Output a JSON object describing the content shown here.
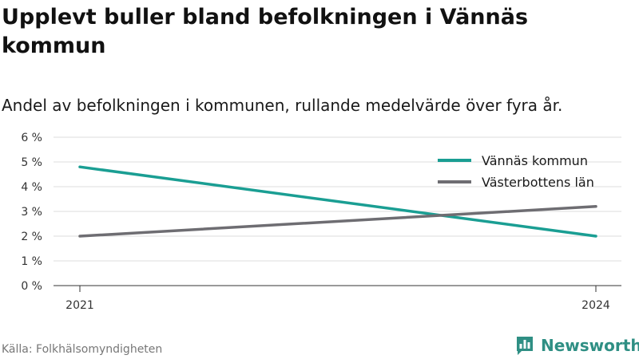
{
  "title": "Upplevt buller bland befolkningen i Vännäs kommun",
  "subtitle": "Andel av befolkningen i kommunen, rullande medelvärde över fyra år.",
  "source": "Källa: Folkhälsomyndigheten",
  "brand": {
    "name": "Newsworthy",
    "icon": "bar-chart-icon",
    "color": "#2f8f84"
  },
  "chart_data": {
    "type": "line",
    "title": "Upplevt buller bland befolkningen i Vännäs kommun",
    "subtitle": "Andel av befolkningen i kommunen, rullande medelvärde över fyra år.",
    "x": [
      2021,
      2024
    ],
    "x_tick_labels": [
      "2021",
      "2024"
    ],
    "xlabel": "",
    "ylabel": "",
    "ylim": [
      0,
      6
    ],
    "y_ticks": [
      0,
      1,
      2,
      3,
      4,
      5,
      6
    ],
    "y_tick_labels": [
      "0 %",
      "1 %",
      "2 %",
      "3 %",
      "4 %",
      "5 %",
      "6 %"
    ],
    "grid": true,
    "legend_position": "top-right",
    "series": [
      {
        "name": "Vännäs kommun",
        "values": [
          4.8,
          2.0
        ],
        "color": "#1a9e93"
      },
      {
        "name": "Västerbottens län",
        "values": [
          2.0,
          3.2
        ],
        "color": "#6e6d72"
      }
    ]
  }
}
